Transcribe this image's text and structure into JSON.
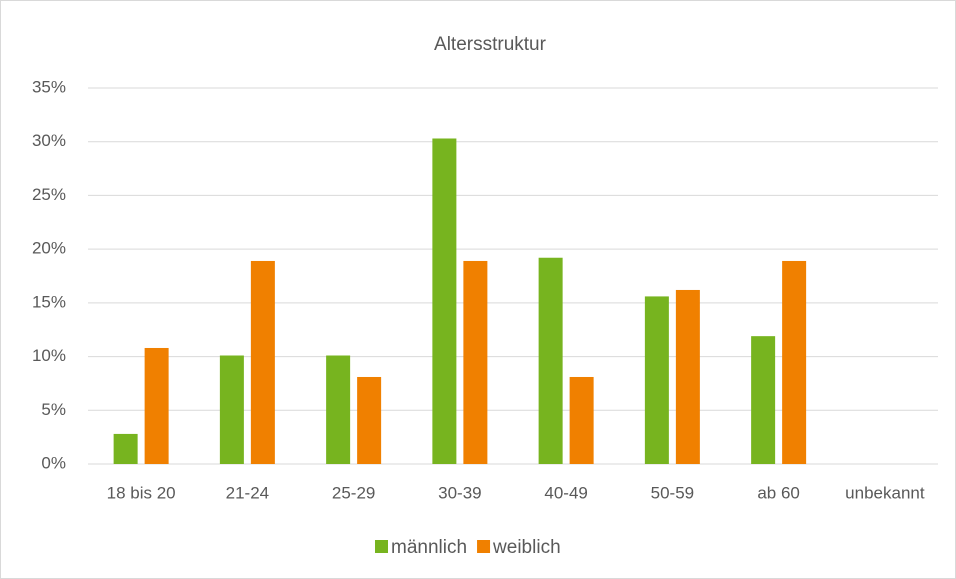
{
  "chart_data": {
    "type": "bar",
    "title": "Altersstruktur",
    "categories": [
      "18 bis 20",
      "21-24",
      "25-29",
      "30-39",
      "40-49",
      "50-59",
      "ab 60",
      "unbekannt"
    ],
    "series": [
      {
        "name": "männlich",
        "color": "#77b41f",
        "values": [
          2.8,
          10.1,
          10.1,
          30.3,
          19.2,
          15.6,
          11.9,
          0
        ]
      },
      {
        "name": "weiblich",
        "color": "#f08000",
        "values": [
          10.8,
          18.9,
          8.1,
          18.9,
          8.1,
          16.2,
          18.9,
          0
        ]
      }
    ],
    "ylim": [
      0,
      35
    ],
    "yticks": [
      {
        "value": 0,
        "label": "0%"
      },
      {
        "value": 5,
        "label": "5%"
      },
      {
        "value": 10,
        "label": "10%"
      },
      {
        "value": 15,
        "label": "15%"
      },
      {
        "value": 20,
        "label": "20%"
      },
      {
        "value": 25,
        "label": "25%"
      },
      {
        "value": 30,
        "label": "30%"
      },
      {
        "value": 35,
        "label": "35%"
      }
    ],
    "grid": true,
    "legend": "bottom"
  }
}
